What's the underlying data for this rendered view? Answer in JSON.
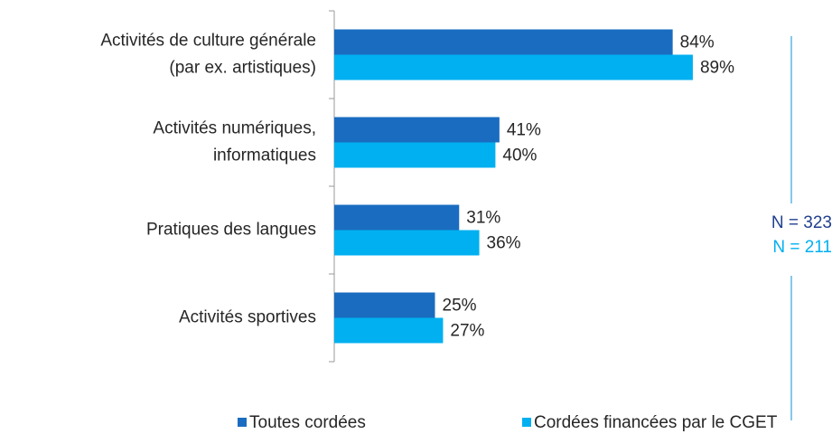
{
  "chart_data": {
    "type": "hbar",
    "categories": [
      [
        "Activités de culture générale",
        "(par ex. artistiques)"
      ],
      [
        "Activités numériques,",
        "informatiques"
      ],
      [
        "Pratiques des langues"
      ],
      [
        "Activités sportives"
      ]
    ],
    "series": [
      {
        "name": "Toutes cordées",
        "color": "#1a6cc0",
        "values": [
          84,
          41,
          31,
          25
        ],
        "value_labels": [
          "84%",
          "41%",
          "31%",
          "25%"
        ]
      },
      {
        "name": "Cordées financées par le CGET",
        "color": "#00b0f0",
        "values": [
          89,
          40,
          36,
          27
        ],
        "value_labels": [
          "89%",
          "40%",
          "36%",
          "27%"
        ]
      }
    ],
    "xlim": [
      0,
      100
    ],
    "annotations": [
      {
        "text": "N = 323",
        "color": "#1f3f8f"
      },
      {
        "text": "N = 211",
        "color": "#00b0f0"
      }
    ]
  }
}
